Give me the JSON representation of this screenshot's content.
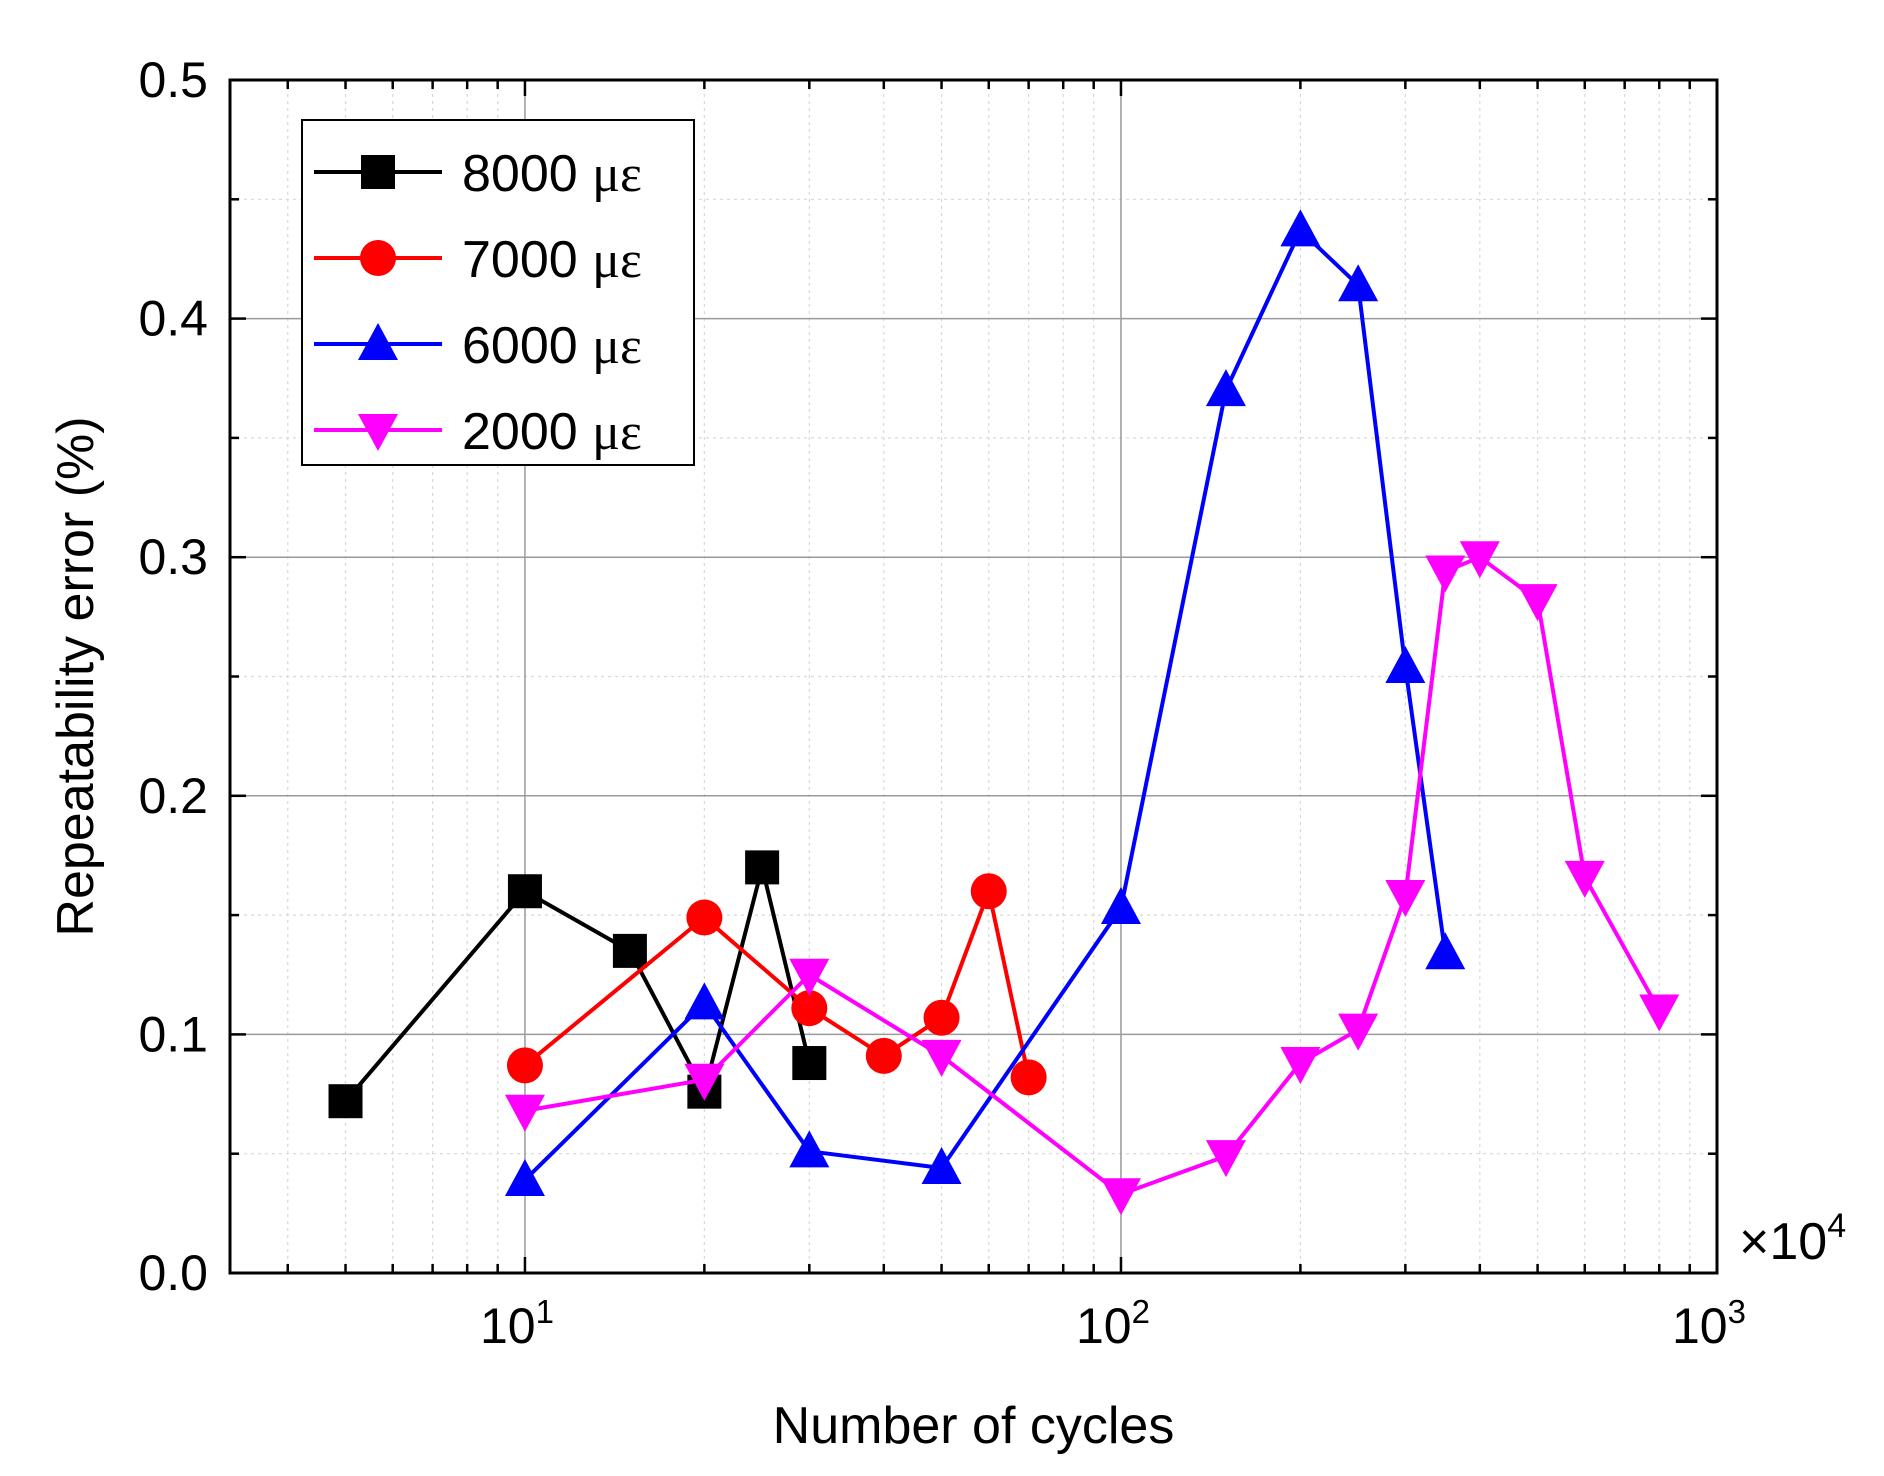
{
  "chart_data": {
    "type": "line",
    "title": "",
    "xlabel": "Number of cycles",
    "ylabel": "Repeatability error (%)",
    "x_scale": "log",
    "x_multiplier_label": "×10",
    "x_multiplier_exponent": "4",
    "xlim": [
      3.2,
      1000
    ],
    "ylim": [
      0.0,
      0.5
    ],
    "x_ticks": [
      {
        "value": 10,
        "base": "10",
        "exp": "1"
      },
      {
        "value": 100,
        "base": "10",
        "exp": "2"
      },
      {
        "value": 1000,
        "base": "10",
        "exp": "3"
      }
    ],
    "y_ticks": [
      {
        "value": 0.0,
        "label": "0.0"
      },
      {
        "value": 0.1,
        "label": "0.1"
      },
      {
        "value": 0.2,
        "label": "0.2"
      },
      {
        "value": 0.3,
        "label": "0.3"
      },
      {
        "value": 0.4,
        "label": "0.4"
      },
      {
        "value": 0.5,
        "label": "0.5"
      }
    ],
    "grid": true,
    "legend_position": "top-left",
    "series": [
      {
        "name": "8000 με",
        "value_label": "8000",
        "unit_label": "με",
        "color": "#000000",
        "marker": "square",
        "x": [
          5,
          10,
          15,
          20,
          25,
          30
        ],
        "y": [
          0.072,
          0.16,
          0.135,
          0.076,
          0.17,
          0.088
        ]
      },
      {
        "name": "7000 με",
        "value_label": "7000",
        "unit_label": "με",
        "color": "#ff0000",
        "marker": "circle",
        "x": [
          10,
          20,
          30,
          40,
          50,
          60,
          70
        ],
        "y": [
          0.087,
          0.149,
          0.111,
          0.091,
          0.107,
          0.16,
          0.082
        ]
      },
      {
        "name": "6000 με",
        "value_label": "6000",
        "unit_label": "με",
        "color": "#0000ff",
        "marker": "triangle-up",
        "x": [
          10,
          20,
          30,
          50,
          100,
          150,
          200,
          250,
          300,
          350
        ],
        "y": [
          0.039,
          0.113,
          0.051,
          0.044,
          0.153,
          0.37,
          0.437,
          0.414,
          0.254,
          0.134
        ]
      },
      {
        "name": "2000 με",
        "value_label": "2000",
        "unit_label": "με",
        "color": "#ff00ff",
        "marker": "triangle-down",
        "x": [
          10,
          20,
          30,
          50,
          100,
          150,
          200,
          250,
          300,
          350,
          400,
          500,
          600,
          800
        ],
        "y": [
          0.068,
          0.081,
          0.125,
          0.091,
          0.033,
          0.049,
          0.088,
          0.102,
          0.158,
          0.294,
          0.3,
          0.282,
          0.166,
          0.11
        ]
      }
    ]
  }
}
